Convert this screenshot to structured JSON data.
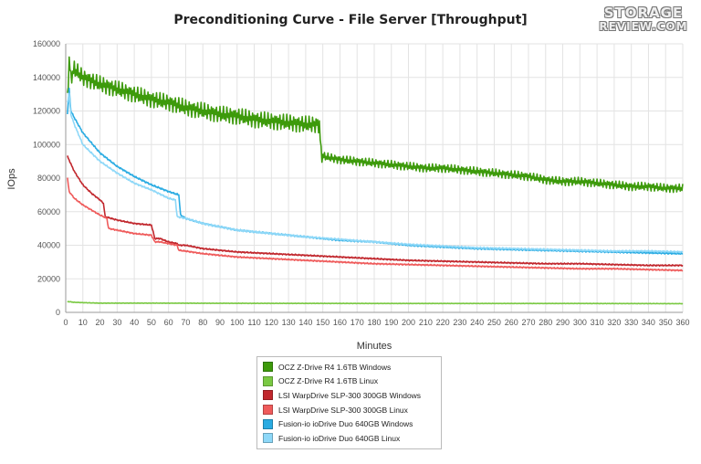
{
  "logo": {
    "line1": "STORAGE",
    "line2": "REVIEW.COM"
  },
  "chart_data": {
    "type": "line",
    "title": "Preconditioning Curve - File Server [Throughput]",
    "xlabel": "Minutes",
    "ylabel": "IOps",
    "xlim": [
      0,
      360
    ],
    "ylim": [
      0,
      160000
    ],
    "xticks": [
      0,
      10,
      20,
      30,
      40,
      50,
      60,
      70,
      80,
      90,
      100,
      110,
      120,
      130,
      140,
      150,
      160,
      170,
      180,
      190,
      200,
      210,
      220,
      230,
      240,
      250,
      260,
      270,
      280,
      290,
      300,
      310,
      320,
      330,
      340,
      350,
      360
    ],
    "yticks": [
      0,
      20000,
      40000,
      60000,
      80000,
      100000,
      120000,
      140000,
      160000
    ],
    "grid": true,
    "legend_position": "bottom",
    "series": [
      {
        "name": "OCZ Z-Drive R4 1.6TB Windows",
        "color": "#3d9a0b",
        "x": [
          1,
          2,
          3,
          5,
          10,
          20,
          30,
          40,
          50,
          60,
          70,
          80,
          90,
          100,
          110,
          120,
          130,
          140,
          148,
          149,
          150,
          160,
          170,
          180,
          190,
          200,
          210,
          220,
          230,
          240,
          250,
          260,
          270,
          280,
          290,
          300,
          310,
          320,
          330,
          340,
          350,
          360
        ],
        "y": [
          128000,
          150000,
          140000,
          145000,
          140000,
          136000,
          133000,
          130000,
          127000,
          125000,
          122000,
          120000,
          118000,
          117000,
          115000,
          114000,
          113000,
          112000,
          112000,
          95000,
          93000,
          91000,
          90000,
          89000,
          88000,
          87000,
          86000,
          86000,
          85000,
          84000,
          83000,
          82000,
          81000,
          79000,
          78000,
          78000,
          77000,
          76000,
          75000,
          75000,
          74000,
          74000
        ],
        "jitter": 5000
      },
      {
        "name": "OCZ Z-Drive R4 1.6TB Linux",
        "color": "#7ac943",
        "x": [
          1,
          5,
          10,
          20,
          50,
          100,
          200,
          300,
          360
        ],
        "y": [
          6500,
          6000,
          5800,
          5500,
          5500,
          5400,
          5300,
          5300,
          5200
        ],
        "jitter": 150
      },
      {
        "name": "LSI WarpDrive SLP-300 300GB Windows",
        "color": "#c1272d",
        "x": [
          1,
          5,
          10,
          15,
          20,
          22,
          23,
          30,
          40,
          50,
          51,
          52,
          55,
          60,
          65,
          66,
          70,
          80,
          90,
          100,
          120,
          140,
          160,
          180,
          200,
          220,
          240,
          260,
          280,
          300,
          320,
          340,
          360
        ],
        "y": [
          93000,
          84000,
          76000,
          71000,
          67000,
          65000,
          57000,
          55000,
          53000,
          52000,
          48000,
          44000,
          44000,
          42000,
          41000,
          40000,
          40000,
          38000,
          37000,
          36000,
          35000,
          34000,
          33000,
          32000,
          31000,
          30500,
          30000,
          29500,
          29000,
          29000,
          28500,
          28000,
          28000
        ],
        "jitter": 400
      },
      {
        "name": "LSI WarpDrive SLP-300 300GB Linux",
        "color": "#ef5b5b",
        "x": [
          1,
          2,
          5,
          10,
          15,
          20,
          24,
          25,
          30,
          40,
          50,
          52,
          55,
          60,
          65,
          66,
          70,
          80,
          90,
          100,
          120,
          140,
          160,
          180,
          200,
          220,
          240,
          260,
          280,
          300,
          320,
          340,
          360
        ],
        "y": [
          80000,
          72000,
          68000,
          64000,
          61000,
          58000,
          56000,
          50000,
          49000,
          47000,
          46000,
          42000,
          42000,
          41000,
          40000,
          37000,
          36500,
          35000,
          34000,
          33000,
          32000,
          31000,
          30000,
          29000,
          28500,
          28000,
          27500,
          27000,
          26500,
          26000,
          26000,
          25500,
          25000
        ],
        "jitter": 400
      },
      {
        "name": "Fusion-io ioDrive Duo 640GB Windows",
        "color": "#29abe2",
        "x": [
          1,
          2,
          3,
          5,
          10,
          20,
          30,
          40,
          50,
          60,
          66,
          67,
          70,
          80,
          90,
          100,
          120,
          140,
          160,
          180,
          200,
          220,
          240,
          260,
          280,
          300,
          320,
          340,
          360
        ],
        "y": [
          118000,
          133000,
          120000,
          116000,
          107000,
          95000,
          87000,
          81000,
          76000,
          72000,
          70000,
          58000,
          56000,
          53000,
          51000,
          49000,
          47000,
          45000,
          43000,
          42000,
          40000,
          39000,
          38000,
          37500,
          37000,
          36500,
          36000,
          35500,
          35000
        ],
        "jitter": 500
      },
      {
        "name": "Fusion-io ioDrive Duo 640GB Linux",
        "color": "#8ed8f8",
        "x": [
          1,
          2,
          3,
          5,
          10,
          20,
          30,
          40,
          50,
          60,
          64,
          65,
          70,
          80,
          90,
          100,
          120,
          140,
          160,
          180,
          200,
          220,
          240,
          260,
          280,
          300,
          320,
          340,
          360
        ],
        "y": [
          125000,
          130000,
          118000,
          112000,
          100000,
          90000,
          83000,
          77000,
          73000,
          68000,
          67000,
          57000,
          56000,
          53000,
          51000,
          49000,
          47000,
          45000,
          43500,
          42000,
          40500,
          39500,
          38500,
          38000,
          37500,
          37000,
          36500,
          36500,
          36000
        ],
        "jitter": 500
      }
    ]
  }
}
